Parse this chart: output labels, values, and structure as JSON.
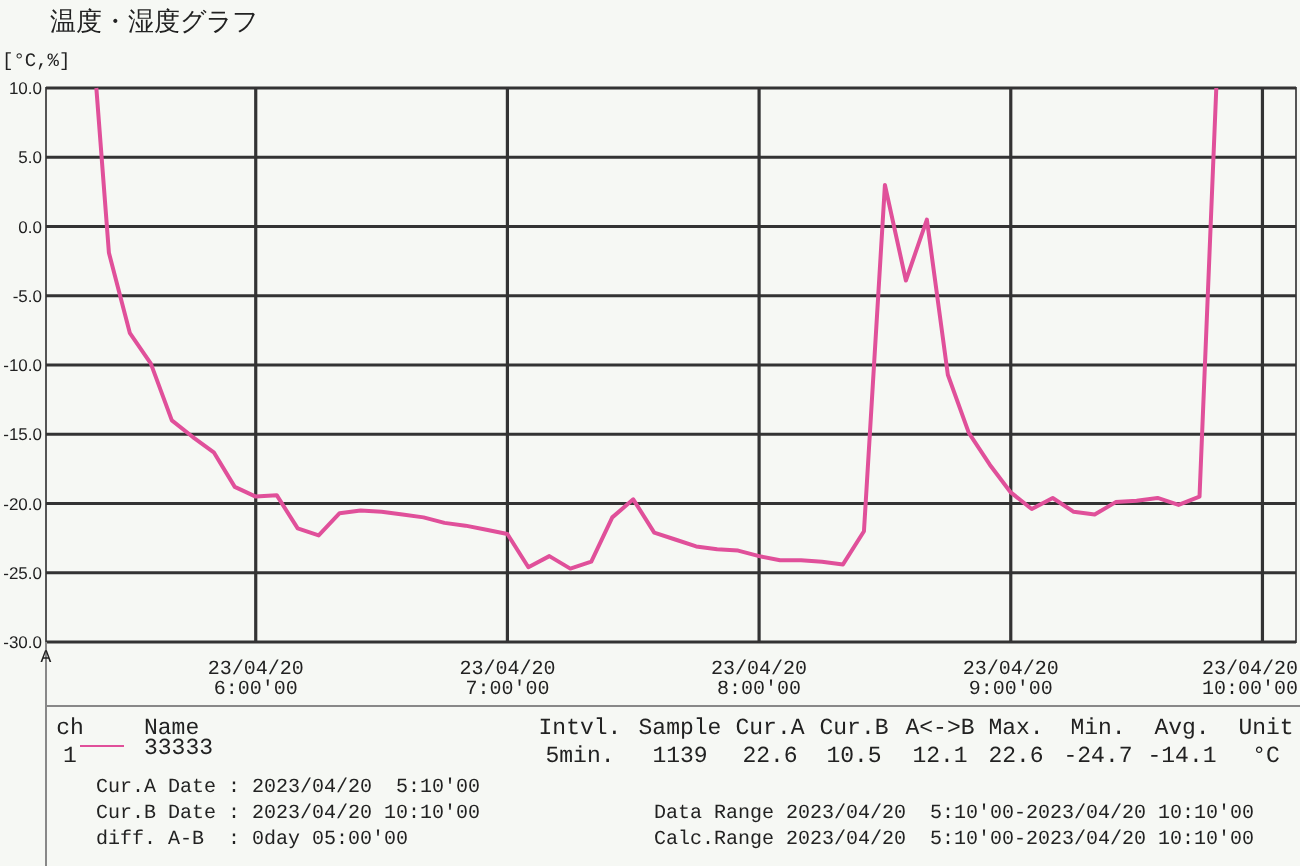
{
  "chart_data": {
    "type": "line",
    "title": "温度・湿度グラフ",
    "ylabel": "[°C,%]",
    "xlim": [
      "2023-04-20T05:10",
      "2023-04-20T10:08"
    ],
    "ylim": [
      -30,
      10
    ],
    "xticks": [
      {
        "value": "2023-04-20T06:00",
        "label": "23/04/20\n6:00'00"
      },
      {
        "value": "2023-04-20T07:00",
        "label": "23/04/20\n7:00'00"
      },
      {
        "value": "2023-04-20T08:00",
        "label": "23/04/20\n8:00'00"
      },
      {
        "value": "2023-04-20T09:00",
        "label": "23/04/20\n9:00'00"
      },
      {
        "value": "2023-04-20T10:00",
        "label": "23/04/20\n10:00'00"
      }
    ],
    "yticks": [
      {
        "value": 10,
        "label": "10.0"
      },
      {
        "value": 5,
        "label": "5.0"
      },
      {
        "value": 0,
        "label": "0.0"
      },
      {
        "value": -5,
        "label": "-5.0"
      },
      {
        "value": -10,
        "label": "-10.0"
      },
      {
        "value": -15,
        "label": "-15.0"
      },
      {
        "value": -20,
        "label": "-20.0"
      },
      {
        "value": -25,
        "label": "-25.0"
      },
      {
        "value": -30,
        "label": "-30.0"
      }
    ],
    "grid": true,
    "legend": "bottom",
    "marker": "none",
    "line_style": "solid",
    "series": [
      {
        "name": "33333",
        "color": "#e0509a",
        "x": [
          "2023-04-20T05:22",
          "2023-04-20T05:25",
          "2023-04-20T05:30",
          "2023-04-20T05:35",
          "2023-04-20T05:40",
          "2023-04-20T05:45",
          "2023-04-20T05:50",
          "2023-04-20T05:55",
          "2023-04-20T06:00",
          "2023-04-20T06:05",
          "2023-04-20T06:10",
          "2023-04-20T06:15",
          "2023-04-20T06:20",
          "2023-04-20T06:25",
          "2023-04-20T06:30",
          "2023-04-20T06:35",
          "2023-04-20T06:40",
          "2023-04-20T06:45",
          "2023-04-20T06:50",
          "2023-04-20T06:55",
          "2023-04-20T07:00",
          "2023-04-20T07:05",
          "2023-04-20T07:10",
          "2023-04-20T07:15",
          "2023-04-20T07:20",
          "2023-04-20T07:25",
          "2023-04-20T07:30",
          "2023-04-20T07:35",
          "2023-04-20T07:40",
          "2023-04-20T07:45",
          "2023-04-20T07:50",
          "2023-04-20T07:55",
          "2023-04-20T08:00",
          "2023-04-20T08:05",
          "2023-04-20T08:10",
          "2023-04-20T08:15",
          "2023-04-20T08:20",
          "2023-04-20T08:25",
          "2023-04-20T08:30",
          "2023-04-20T08:35",
          "2023-04-20T08:40",
          "2023-04-20T08:45",
          "2023-04-20T08:50",
          "2023-04-20T08:55",
          "2023-04-20T09:00",
          "2023-04-20T09:05",
          "2023-04-20T09:10",
          "2023-04-20T09:15",
          "2023-04-20T09:20",
          "2023-04-20T09:25",
          "2023-04-20T09:30",
          "2023-04-20T09:35",
          "2023-04-20T09:40",
          "2023-04-20T09:45",
          "2023-04-20T09:49"
        ],
        "values": [
          10.0,
          -1.9,
          -7.7,
          -9.9,
          -14.0,
          -15.2,
          -16.3,
          -18.8,
          -19.5,
          -19.4,
          -21.8,
          -22.3,
          -20.7,
          -20.5,
          -20.6,
          -20.8,
          -21.0,
          -21.4,
          -21.6,
          -21.9,
          -22.2,
          -24.6,
          -23.8,
          -24.7,
          -24.2,
          -21.0,
          -19.7,
          -22.1,
          -22.6,
          -23.1,
          -23.3,
          -23.4,
          -23.8,
          -24.1,
          -24.1,
          -24.2,
          -24.4,
          -22.0,
          3.0,
          -3.9,
          0.5,
          -10.7,
          -14.9,
          -17.2,
          -19.2,
          -20.4,
          -19.6,
          -20.6,
          -20.8,
          -19.9,
          -19.8,
          -19.6,
          -20.1,
          -19.5,
          10.0
        ]
      }
    ],
    "annotations": [
      "A",
      "ch",
      "Name",
      "Intvl.",
      "Sample",
      "Cur.A",
      "Cur.B",
      "A<->B",
      "Max.",
      "Min.",
      "Avg.",
      "Unit",
      "1",
      "5min.",
      "1139",
      "22.6",
      "10.5",
      "12.1",
      "22.6",
      "-24.7",
      "-14.1",
      "°C",
      "Cur.A Date : 2023/04/20  5:10'00",
      "Cur.B Date : 2023/04/20 10:10'00",
      "diff. A-B  : 0day 05:00'00",
      "Data Range 2023/04/20  5:10'00-2023/04/20 10:10'00",
      "Calc.Range 2023/04/20  5:10'00-2023/04/20 10:10'00"
    ]
  }
}
